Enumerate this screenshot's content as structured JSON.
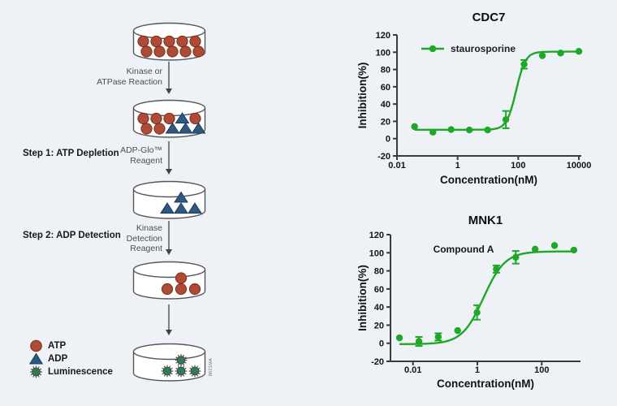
{
  "workflow": {
    "step1_label": "Step 1: ATP Depletion",
    "step2_label": "Step 2: ADP Detection",
    "arrows": [
      {
        "lines": [
          "Kinase or",
          "ATPase Reaction"
        ]
      },
      {
        "lines": [
          "ADP-Glo™",
          "Reagent"
        ]
      },
      {
        "lines": [
          "Kinase",
          "Detection",
          "Reagent"
        ]
      },
      {
        "lines": []
      }
    ],
    "dishes": [
      {
        "name": "dish-reaction-start",
        "layout": "grid",
        "rows": [
          [
            "atp",
            "atp",
            "atp",
            "atp",
            "atp"
          ],
          [
            "atp",
            "atp",
            "atp",
            "atp",
            "atp"
          ]
        ]
      },
      {
        "name": "dish-reaction-mix",
        "layout": "grid",
        "rows": [
          [
            "atp",
            "atp",
            "atp",
            "adp",
            "atp"
          ],
          [
            "atp",
            "atp",
            "adp",
            "adp",
            "adp"
          ]
        ]
      },
      {
        "name": "dish-adp-remaining",
        "layout": "cluster",
        "rows": [
          [
            "adp"
          ],
          [
            "adp",
            "adp",
            "adp"
          ]
        ]
      },
      {
        "name": "dish-atp-converted",
        "layout": "cluster",
        "rows": [
          [
            "atp"
          ],
          [
            "atp",
            "atp",
            "atp"
          ]
        ]
      },
      {
        "name": "dish-luminescence",
        "layout": "cluster",
        "rows": [
          [
            "lum"
          ],
          [
            "lum",
            "lum",
            "lum"
          ]
        ]
      }
    ],
    "legend": [
      {
        "icon": "atp-circle-icon",
        "label": "ATP"
      },
      {
        "icon": "adp-triangle-icon",
        "label": "ADP"
      },
      {
        "icon": "luminescence-star-icon",
        "label": "Luminescence"
      }
    ],
    "figure_number": "8021MA",
    "colors": {
      "atp": "#AE4A36",
      "atp_stroke": "#7a2e1d",
      "adp": "#2F5880",
      "adp_stroke": "#1a3a5c",
      "luminescence": "#2E7C4F",
      "luminescence_stroke": "#45474b",
      "dish_stroke": "#55565a"
    }
  },
  "chart_data": [
    {
      "type": "scatter",
      "title": "CDC7",
      "xlabel": "Concentration(nM)",
      "ylabel": "Inhibition(%)",
      "xscale": "log",
      "xlim": [
        0.01,
        12000
      ],
      "ylim": [
        -20,
        120
      ],
      "xticks": [
        0.01,
        1,
        100,
        10000
      ],
      "yticks": [
        -20,
        0,
        20,
        40,
        60,
        80,
        100,
        120
      ],
      "grid": false,
      "legend_position": "top-left-inside",
      "series": [
        {
          "name": "staurosporine",
          "color": "#1FA827",
          "x": [
            0.038,
            0.153,
            0.61,
            2.44,
            9.8,
            39,
            156,
            625,
            2500,
            10000
          ],
          "y": [
            14,
            7.5,
            10.5,
            10,
            10,
            22,
            86,
            96,
            99,
            101
          ],
          "yerr": [
            0,
            0,
            0,
            0,
            0,
            10,
            5,
            0,
            0,
            0
          ],
          "fit": {
            "model": "4PL",
            "bottom": 10.3,
            "top": 100.6,
            "ec50": 85,
            "hill": 2.8
          }
        }
      ]
    },
    {
      "type": "scatter",
      "title": "MNK1",
      "annotation": "Compound A",
      "xlabel": "Concentration(nM)",
      "ylabel": "Inhibition(%)",
      "xscale": "log",
      "xlim": [
        0.002,
        1600
      ],
      "ylim": [
        -20,
        120
      ],
      "xticks": [
        0.01,
        1,
        100
      ],
      "yticks": [
        -20,
        0,
        20,
        40,
        60,
        80,
        100,
        120
      ],
      "grid": false,
      "series": [
        {
          "name": "Compound A",
          "color": "#1FA827",
          "x": [
            0.0038,
            0.0153,
            0.061,
            0.244,
            0.977,
            3.9,
            15.6,
            62.5,
            250,
            1000
          ],
          "y": [
            6,
            2,
            7,
            14,
            34,
            82,
            95,
            104,
            108,
            103
          ],
          "yerr": [
            0,
            5,
            4,
            0,
            8,
            4,
            7,
            0,
            0,
            0
          ],
          "fit": {
            "model": "4PL",
            "bottom": -1,
            "top": 101.5,
            "ec50": 1.55,
            "hill": 1.3
          }
        }
      ]
    }
  ]
}
